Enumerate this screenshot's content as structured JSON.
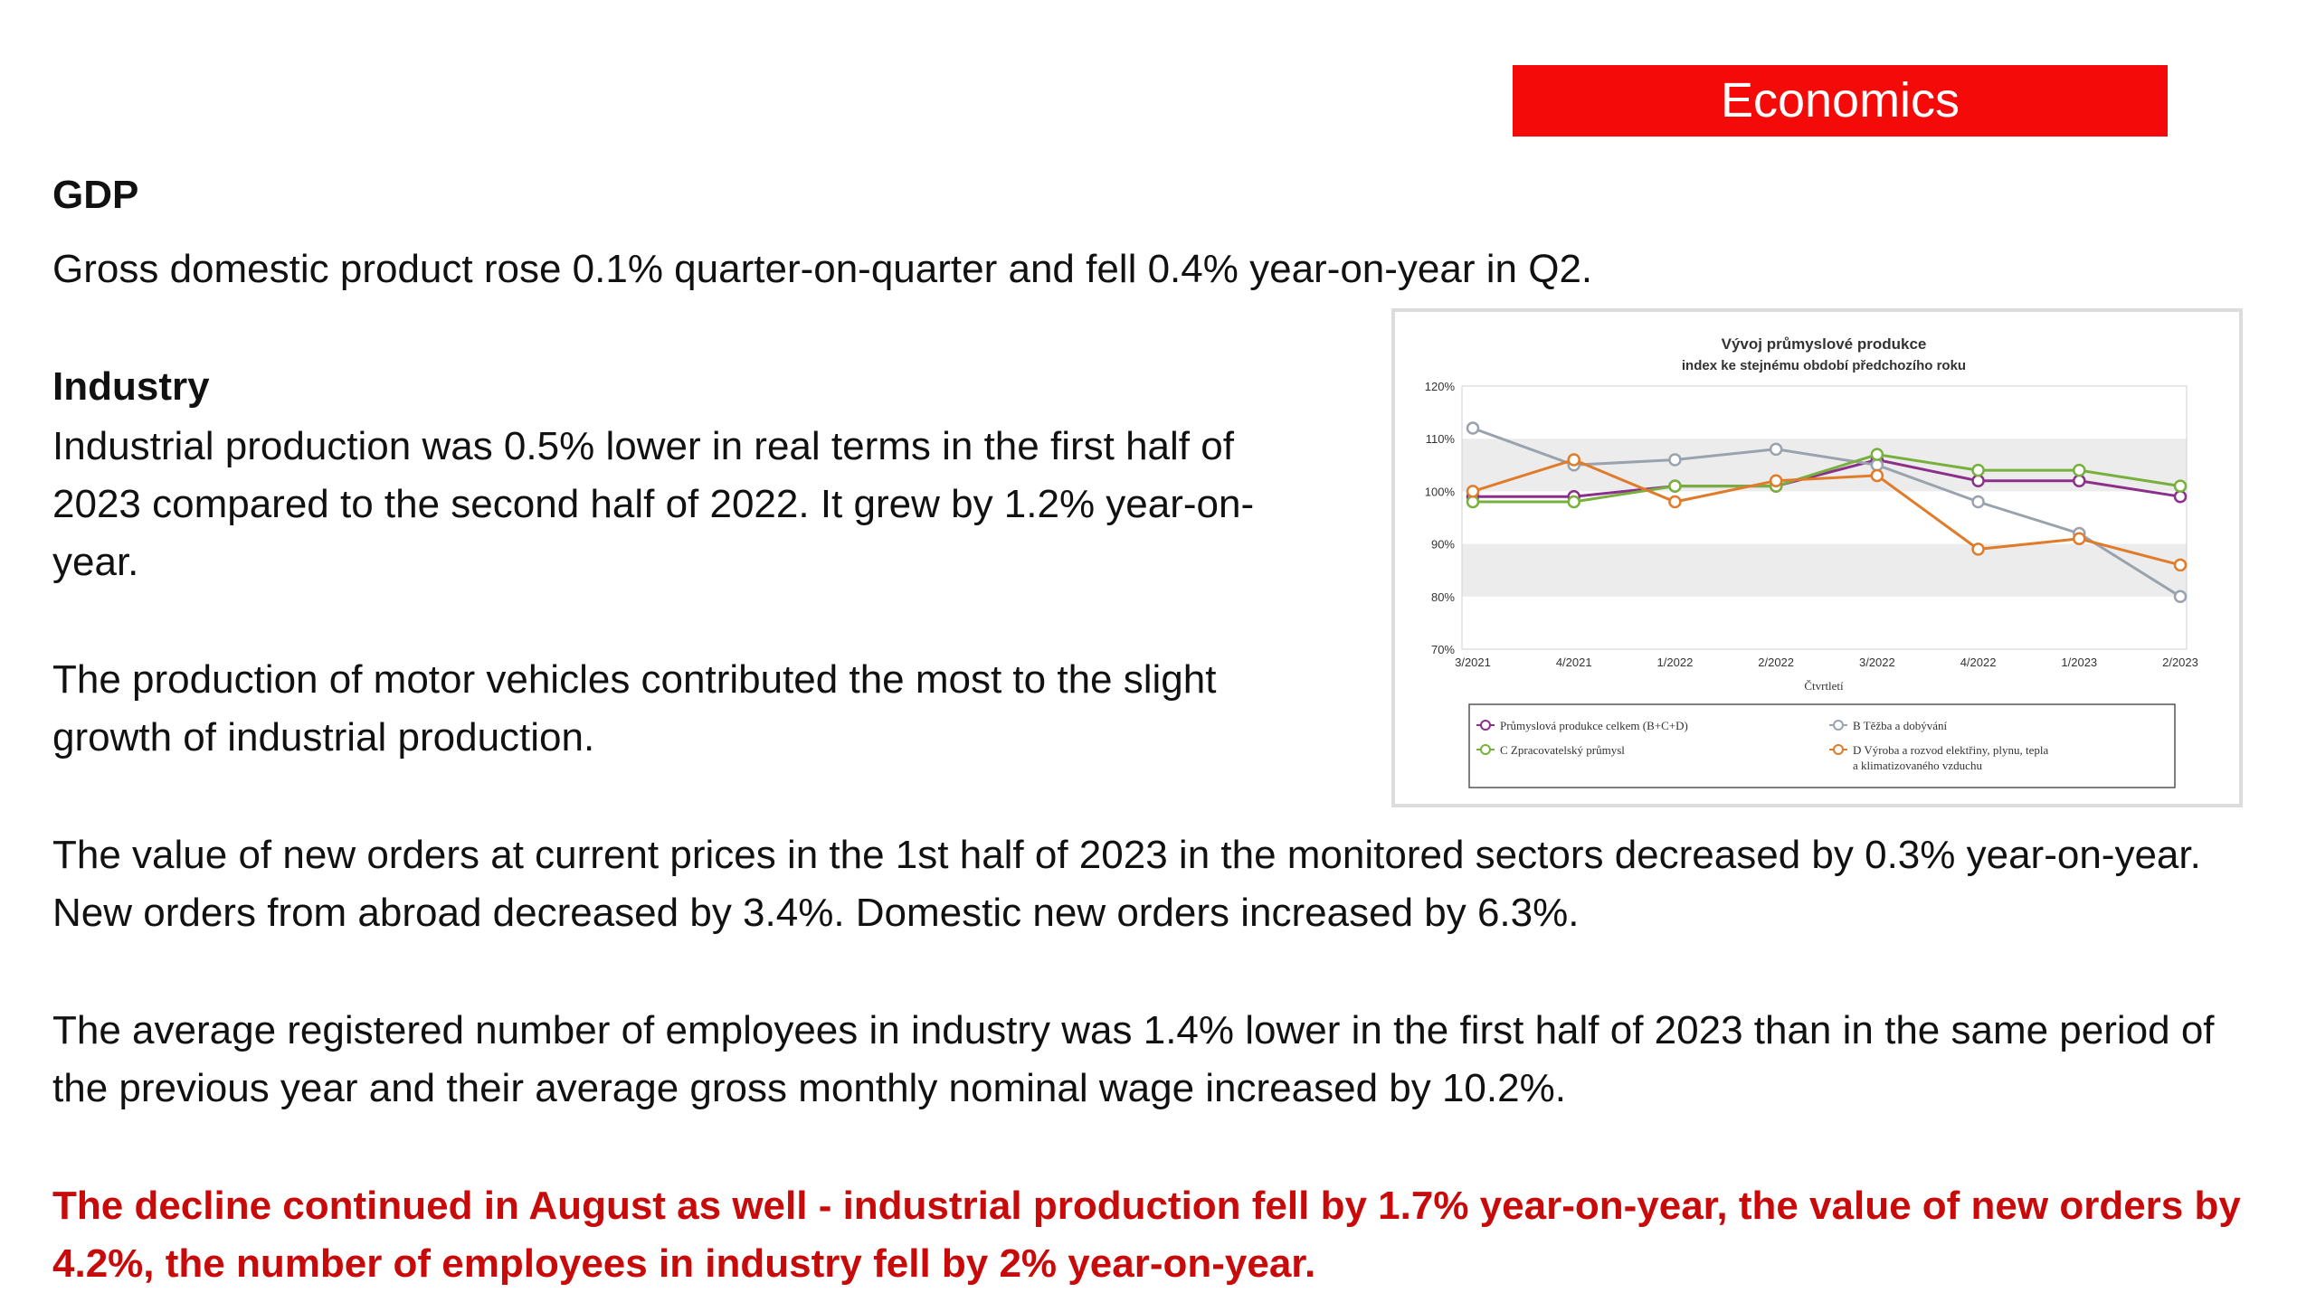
{
  "banner": {
    "label": "Economics"
  },
  "gdp": {
    "heading": "GDP",
    "text": "Gross domestic product rose 0.1% quarter-on-quarter and fell 0.4% year-on-year in Q2."
  },
  "industry": {
    "heading": "Industry",
    "paragraph1": "Industrial production was 0.5% lower in real terms in the first half of 2023 compared to the second half of 2022. It grew by 1.2% year-on-year.",
    "paragraph2": "The production of motor vehicles contributed the most to the slight growth of industrial production.",
    "paragraph3": "The value of new orders at current prices in the 1st half of 2023 in the monitored sectors decreased by 0.3% year-on-year. New orders from abroad decreased by 3.4%. Domestic new orders increased by 6.3%.",
    "paragraph4": "The average registered number of employees in industry was 1.4% lower in the first half of 2023 than in the same period of the previous year and their average gross monthly nominal wage increased by 10.2%.",
    "highlight": "The decline continued in August as well - industrial production fell by 1.7% year-on-year, the value of new orders by 4.2%, the number of employees in industry fell by 2% year-on-year."
  },
  "colors": {
    "banner": "#f50a0a",
    "highlight": "#c80a0a"
  },
  "chart_data": {
    "type": "line",
    "title": "Vývoj průmyslové produkce",
    "subtitle": "index ke stejnému období předchozího roku",
    "xlabel": "Čtvrtletí",
    "ylabel": "",
    "categories": [
      "3/2021",
      "4/2021",
      "1/2022",
      "2/2022",
      "3/2022",
      "4/2022",
      "1/2023",
      "2/2023"
    ],
    "y_ticks": [
      "70%",
      "80%",
      "90%",
      "100%",
      "110%",
      "120%"
    ],
    "ylim": [
      70,
      120
    ],
    "grid": "alternating horizontal bands",
    "legend_position": "bottom",
    "series": [
      {
        "name": "Průmyslová produkce celkem (B+C+D)",
        "color": "#8b2f8b",
        "values": [
          99,
          99,
          101,
          101,
          106,
          102,
          102,
          99
        ]
      },
      {
        "name": "B Těžba a dobývání",
        "color": "#9aa3ad",
        "values": [
          112,
          105,
          106,
          108,
          105,
          98,
          92,
          80
        ]
      },
      {
        "name": "C Zpracovatelský průmysl",
        "color": "#77b03c",
        "values": [
          98,
          98,
          101,
          101,
          107,
          104,
          104,
          101
        ]
      },
      {
        "name": "D Výroba a rozvod elektřiny, plynu, tepla a klimatizovaného vzduchu",
        "color": "#e07b2a",
        "values": [
          100,
          106,
          98,
          102,
          103,
          89,
          91,
          86
        ]
      }
    ]
  }
}
